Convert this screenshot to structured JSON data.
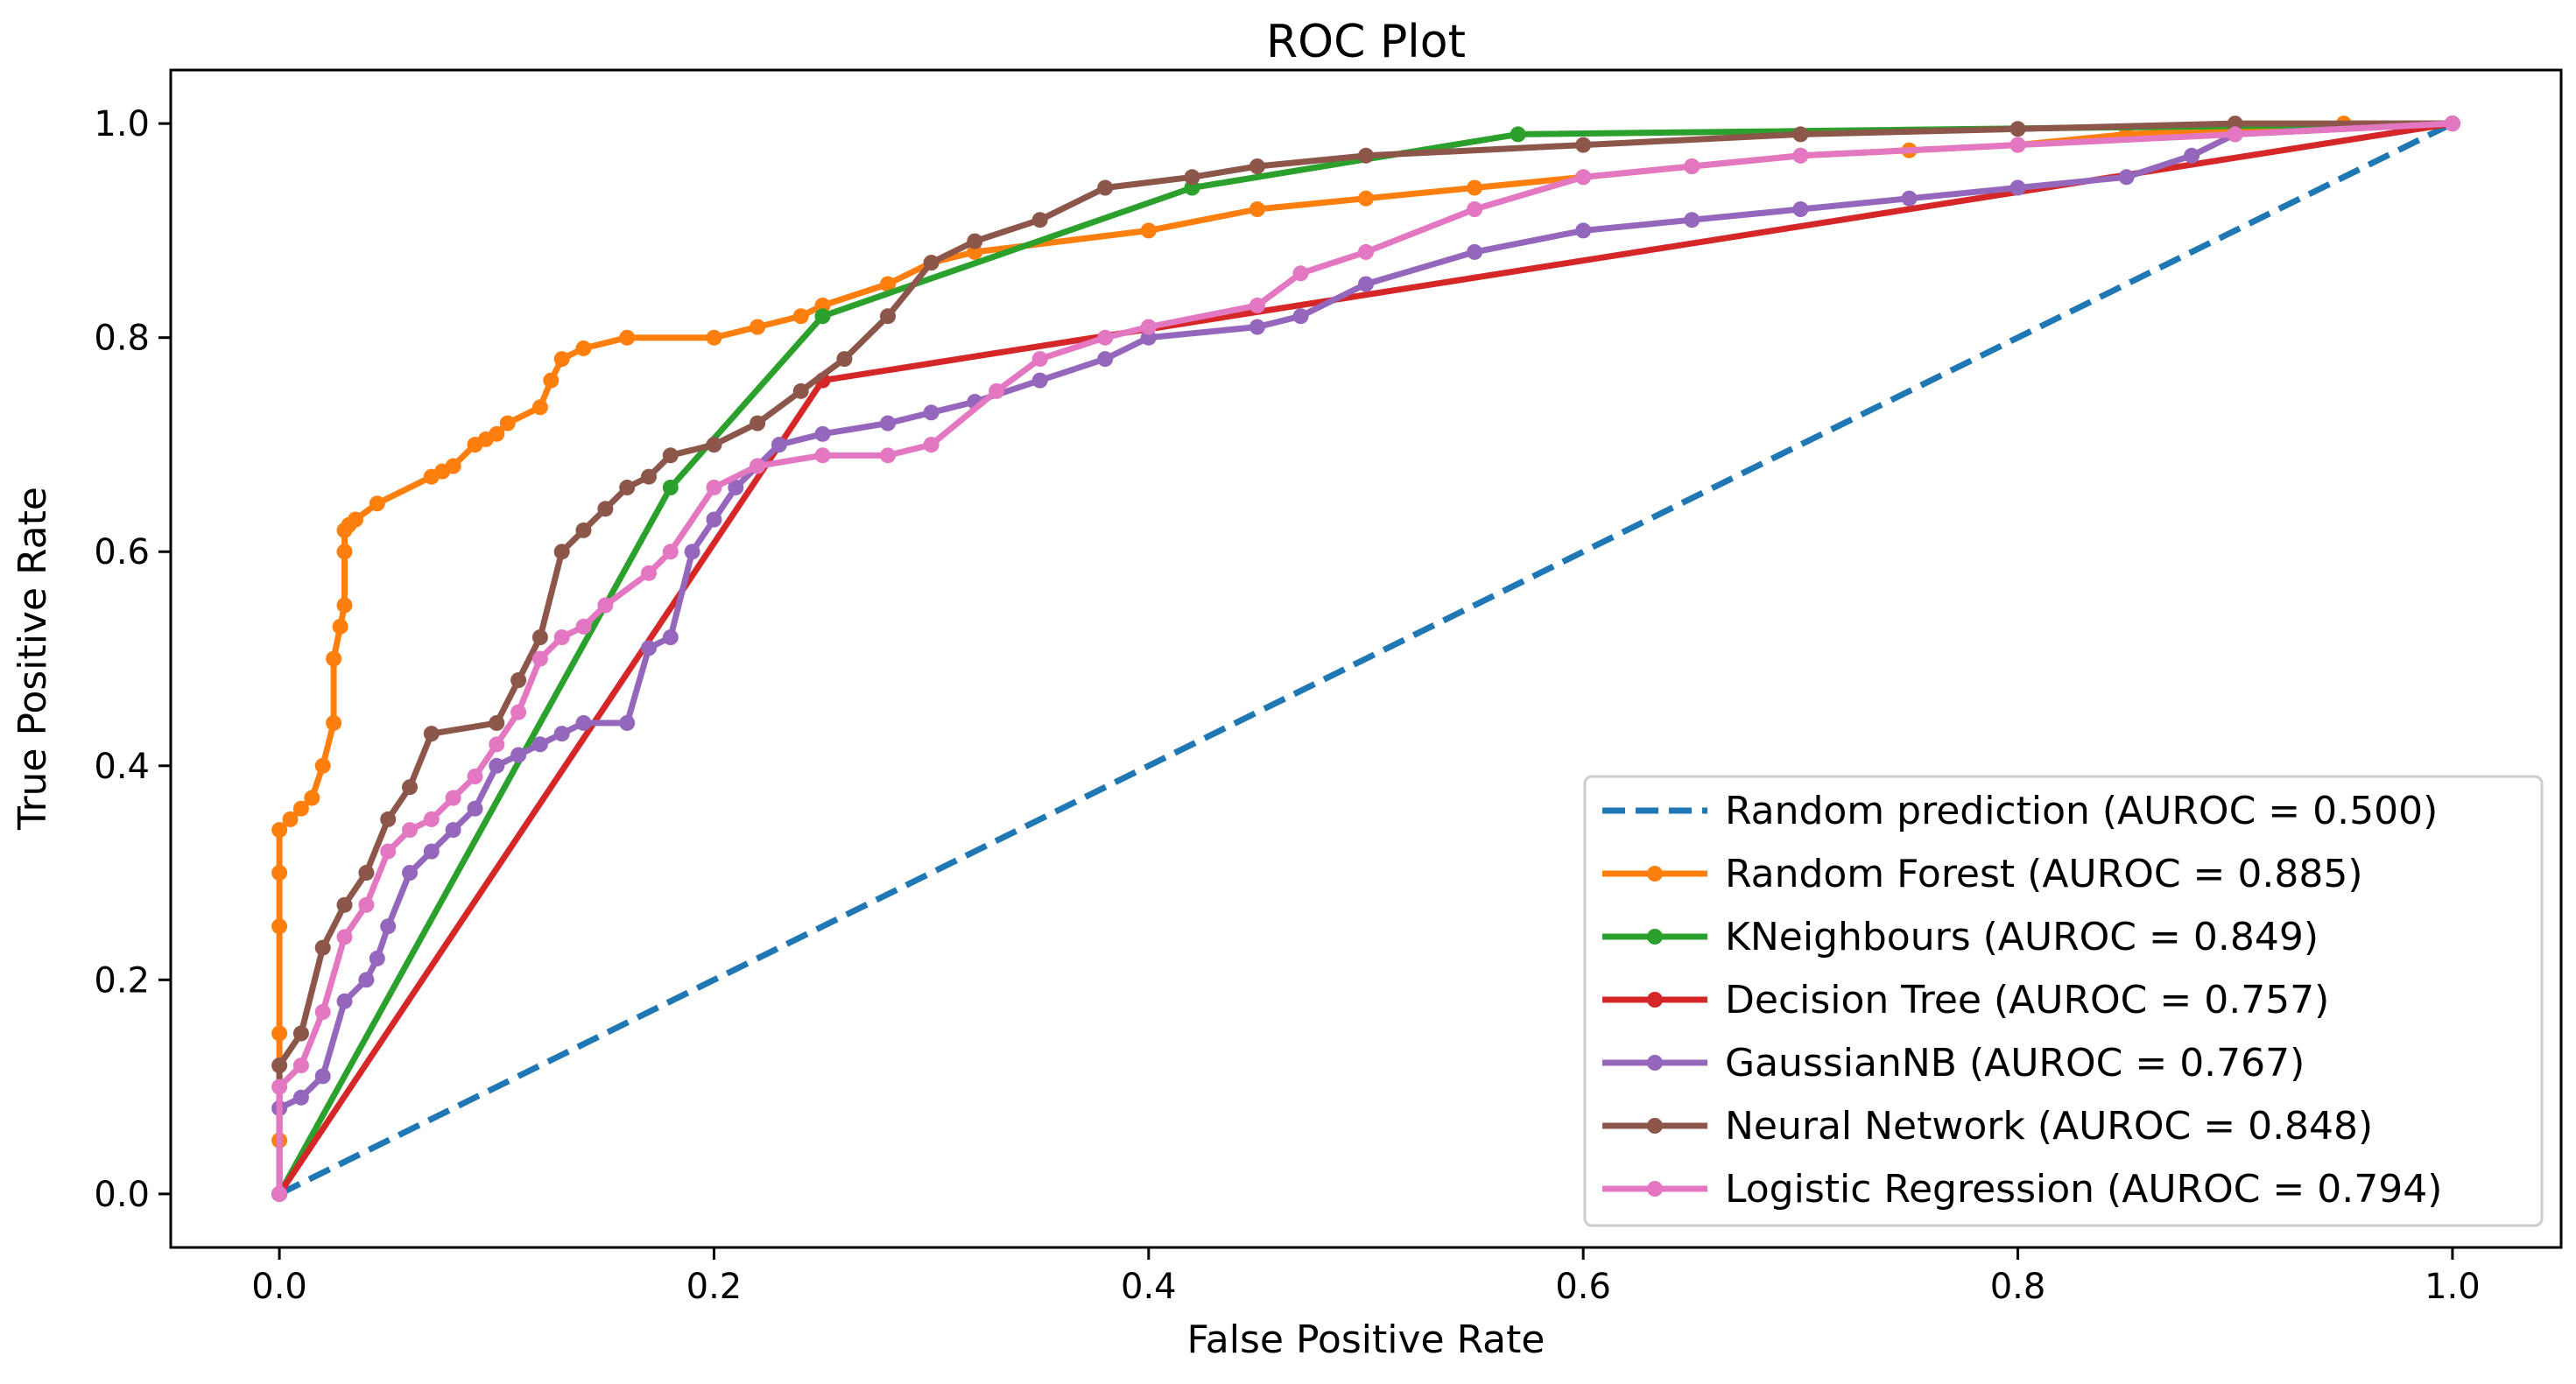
{
  "chart_data": {
    "type": "line",
    "title": "ROC Plot",
    "xlabel": "False Positive Rate",
    "ylabel": "True Positive Rate",
    "xlim": [
      -0.05,
      1.05
    ],
    "ylim": [
      -0.05,
      1.05
    ],
    "xticks": [
      0.0,
      0.2,
      0.4,
      0.6,
      0.8,
      1.0
    ],
    "yticks": [
      0.0,
      0.2,
      0.4,
      0.6,
      0.8,
      1.0
    ],
    "xtick_labels": [
      "0.0",
      "0.2",
      "0.4",
      "0.6",
      "0.8",
      "1.0"
    ],
    "ytick_labels": [
      "0.0",
      "0.2",
      "0.4",
      "0.6",
      "0.8",
      "1.0"
    ],
    "grid": false,
    "legend_position": "lower-right",
    "series": [
      {
        "name": "Random prediction (AUROC = 0.500)",
        "color": "#1f77b4",
        "style": "dashed",
        "markers": false,
        "x": [
          0.0,
          1.0
        ],
        "y": [
          0.0,
          1.0
        ]
      },
      {
        "name": "Random Forest (AUROC = 0.885)",
        "color": "#ff7f0e",
        "style": "solid",
        "markers": true,
        "x": [
          0.0,
          0.0,
          0.0,
          0.0,
          0.0,
          0.0,
          0.005,
          0.01,
          0.015,
          0.02,
          0.025,
          0.025,
          0.028,
          0.03,
          0.03,
          0.03,
          0.032,
          0.035,
          0.045,
          0.07,
          0.075,
          0.08,
          0.09,
          0.095,
          0.1,
          0.105,
          0.12,
          0.125,
          0.13,
          0.14,
          0.16,
          0.2,
          0.22,
          0.24,
          0.25,
          0.28,
          0.3,
          0.32,
          0.4,
          0.45,
          0.5,
          0.55,
          0.6,
          0.65,
          0.7,
          0.75,
          0.8,
          0.85,
          0.9,
          0.95,
          1.0
        ],
        "y": [
          0.0,
          0.05,
          0.15,
          0.25,
          0.3,
          0.34,
          0.35,
          0.36,
          0.37,
          0.4,
          0.44,
          0.5,
          0.53,
          0.55,
          0.6,
          0.62,
          0.625,
          0.63,
          0.645,
          0.67,
          0.675,
          0.68,
          0.7,
          0.705,
          0.71,
          0.72,
          0.735,
          0.76,
          0.78,
          0.79,
          0.8,
          0.8,
          0.81,
          0.82,
          0.83,
          0.85,
          0.87,
          0.88,
          0.9,
          0.92,
          0.93,
          0.94,
          0.95,
          0.96,
          0.97,
          0.975,
          0.98,
          0.99,
          0.995,
          1.0,
          1.0
        ]
      },
      {
        "name": "KNeighbours (AUROC = 0.849)",
        "color": "#2ca02c",
        "style": "solid",
        "markers": true,
        "x": [
          0.0,
          0.18,
          0.25,
          0.42,
          0.57,
          1.0
        ],
        "y": [
          0.0,
          0.66,
          0.82,
          0.94,
          0.99,
          1.0
        ]
      },
      {
        "name": "Decision Tree (AUROC = 0.757)",
        "color": "#d62728",
        "style": "solid",
        "markers": true,
        "x": [
          0.0,
          0.25,
          1.0
        ],
        "y": [
          0.0,
          0.76,
          1.0
        ]
      },
      {
        "name": "GaussianNB (AUROC = 0.767)",
        "color": "#9467bd",
        "style": "solid",
        "markers": true,
        "x": [
          0.0,
          0.0,
          0.01,
          0.02,
          0.03,
          0.04,
          0.045,
          0.05,
          0.06,
          0.07,
          0.08,
          0.09,
          0.1,
          0.11,
          0.12,
          0.13,
          0.14,
          0.16,
          0.17,
          0.18,
          0.19,
          0.2,
          0.21,
          0.22,
          0.23,
          0.25,
          0.28,
          0.3,
          0.32,
          0.35,
          0.38,
          0.4,
          0.45,
          0.47,
          0.5,
          0.55,
          0.6,
          0.65,
          0.7,
          0.75,
          0.8,
          0.85,
          0.88,
          0.9,
          1.0
        ],
        "y": [
          0.0,
          0.08,
          0.09,
          0.11,
          0.18,
          0.2,
          0.22,
          0.25,
          0.3,
          0.32,
          0.34,
          0.36,
          0.4,
          0.41,
          0.42,
          0.43,
          0.44,
          0.44,
          0.51,
          0.52,
          0.6,
          0.63,
          0.66,
          0.68,
          0.7,
          0.71,
          0.72,
          0.73,
          0.74,
          0.76,
          0.78,
          0.8,
          0.81,
          0.82,
          0.85,
          0.88,
          0.9,
          0.91,
          0.92,
          0.93,
          0.94,
          0.95,
          0.97,
          0.99,
          1.0
        ]
      },
      {
        "name": "Neural Network (AUROC = 0.848)",
        "color": "#8c564b",
        "style": "solid",
        "markers": true,
        "x": [
          0.0,
          0.0,
          0.01,
          0.02,
          0.03,
          0.04,
          0.05,
          0.06,
          0.07,
          0.1,
          0.11,
          0.12,
          0.13,
          0.14,
          0.15,
          0.16,
          0.17,
          0.18,
          0.2,
          0.22,
          0.24,
          0.26,
          0.28,
          0.3,
          0.32,
          0.35,
          0.38,
          0.42,
          0.45,
          0.5,
          0.6,
          0.7,
          0.8,
          0.9,
          1.0
        ],
        "y": [
          0.0,
          0.12,
          0.15,
          0.23,
          0.27,
          0.3,
          0.35,
          0.38,
          0.43,
          0.44,
          0.48,
          0.52,
          0.6,
          0.62,
          0.64,
          0.66,
          0.67,
          0.69,
          0.7,
          0.72,
          0.75,
          0.78,
          0.82,
          0.87,
          0.89,
          0.91,
          0.94,
          0.95,
          0.96,
          0.97,
          0.98,
          0.99,
          0.995,
          1.0,
          1.0
        ]
      },
      {
        "name": "Logistic Regression (AUROC = 0.794)",
        "color": "#e377c2",
        "style": "solid",
        "markers": true,
        "x": [
          0.0,
          0.0,
          0.01,
          0.02,
          0.03,
          0.04,
          0.05,
          0.06,
          0.07,
          0.08,
          0.09,
          0.1,
          0.11,
          0.12,
          0.13,
          0.14,
          0.15,
          0.17,
          0.18,
          0.2,
          0.22,
          0.25,
          0.28,
          0.3,
          0.33,
          0.35,
          0.38,
          0.4,
          0.45,
          0.47,
          0.5,
          0.55,
          0.6,
          0.65,
          0.7,
          0.8,
          0.9,
          1.0
        ],
        "y": [
          0.0,
          0.1,
          0.12,
          0.17,
          0.24,
          0.27,
          0.32,
          0.34,
          0.35,
          0.37,
          0.39,
          0.42,
          0.45,
          0.5,
          0.52,
          0.53,
          0.55,
          0.58,
          0.6,
          0.66,
          0.68,
          0.69,
          0.69,
          0.7,
          0.75,
          0.78,
          0.8,
          0.81,
          0.83,
          0.86,
          0.88,
          0.92,
          0.95,
          0.96,
          0.97,
          0.98,
          0.99,
          1.0
        ]
      }
    ]
  }
}
